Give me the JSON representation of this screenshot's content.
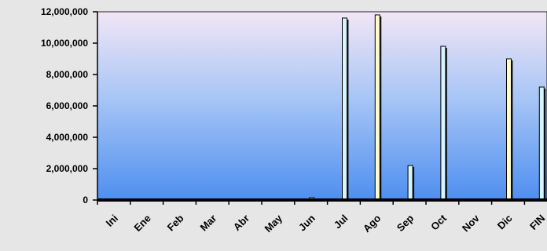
{
  "chart_data": {
    "type": "bar",
    "title": "",
    "xlabel": "",
    "ylabel": "",
    "ylim": [
      0,
      12000000
    ],
    "y_ticks": [
      0,
      2000000,
      4000000,
      6000000,
      8000000,
      10000000,
      12000000
    ],
    "y_tick_labels": [
      "0",
      "2,000,000",
      "4,000,000",
      "6,000,000",
      "8,000,000",
      "10,000,000",
      "12,000,000"
    ],
    "categories": [
      "Ini",
      "Ene",
      "Feb",
      "Mar",
      "Abr",
      "May",
      "Jun",
      "Jul",
      "Ago",
      "Sep",
      "Oct",
      "Nov",
      "Dic",
      "FIN"
    ],
    "grid": false,
    "legend": "none",
    "series": [
      {
        "color": "#d8f4ff",
        "values": [
          0,
          0,
          0,
          0,
          0,
          0,
          0,
          11600000,
          0,
          2200000,
          9800000,
          0,
          0,
          7200000
        ]
      },
      {
        "color": "#fffccc",
        "values": [
          0,
          0,
          0,
          0,
          0,
          0,
          150000,
          0,
          11800000,
          0,
          0,
          0,
          9000000,
          0
        ]
      }
    ],
    "plot_background": {
      "top": "#f2e6f6",
      "bottom": "#4f8ff0"
    }
  }
}
